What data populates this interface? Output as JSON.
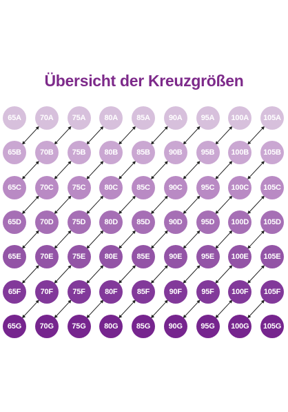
{
  "title": "Übersicht der Kreuzgrößen",
  "bands": [
    "65",
    "70",
    "75",
    "80",
    "85",
    "90",
    "95",
    "100",
    "105"
  ],
  "cups": [
    "A",
    "B",
    "C",
    "D",
    "E",
    "F",
    "G"
  ],
  "cup_colors": [
    "#d7c0dc",
    "#caa7d2",
    "#b98ac4",
    "#a66fb5",
    "#9354a6",
    "#82399a",
    "#76258e"
  ],
  "sister_link_icon": "double-headed-diagonal-arrow-icon",
  "arrow_color": "#222222"
}
